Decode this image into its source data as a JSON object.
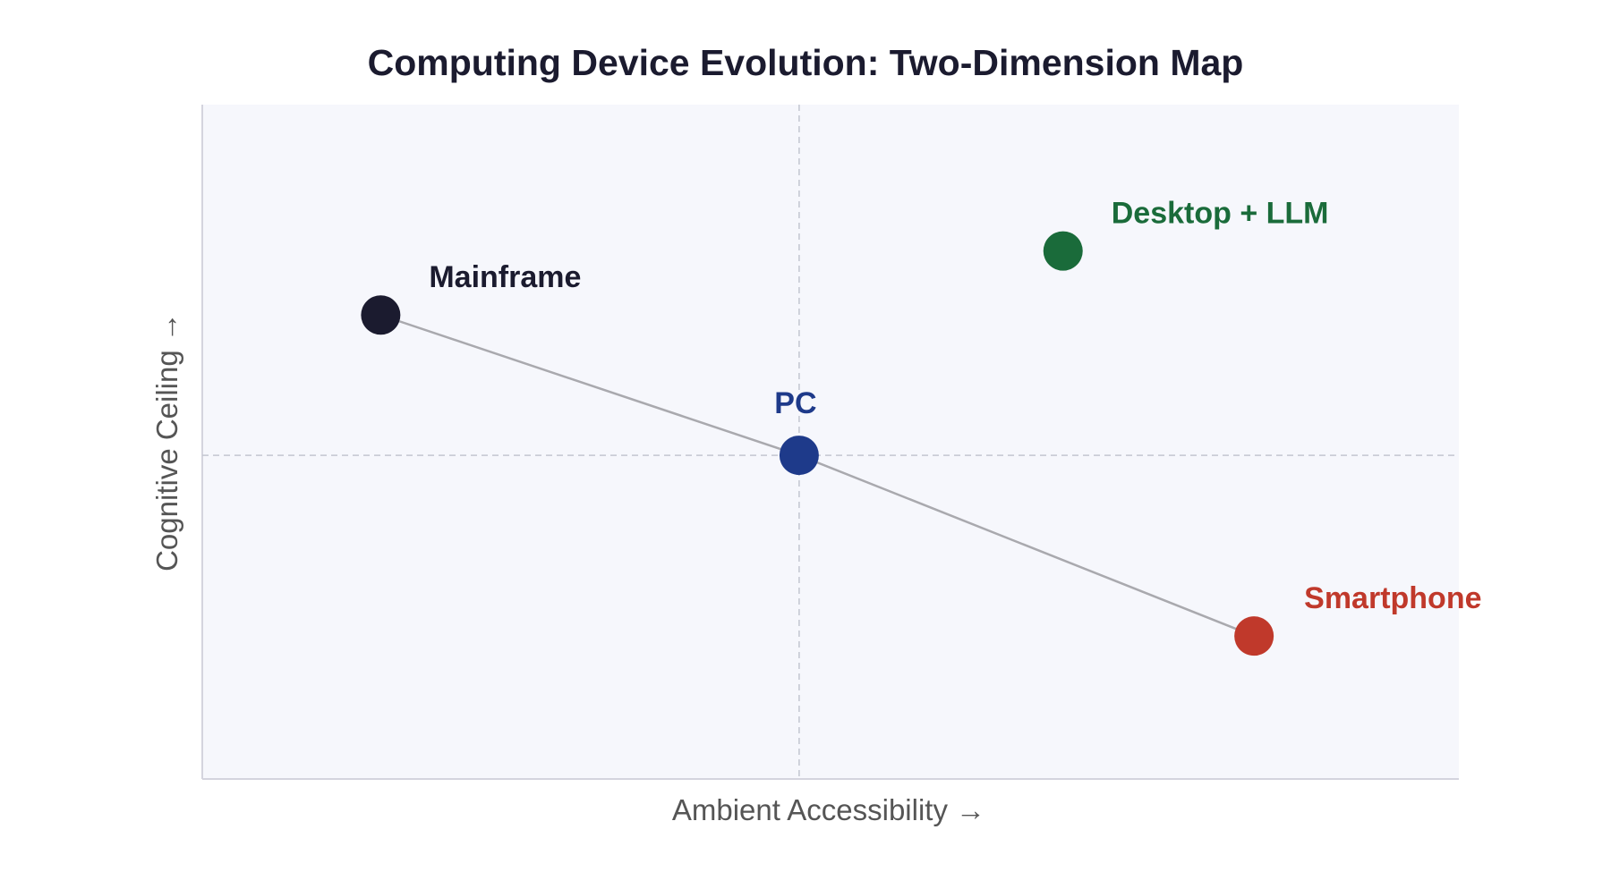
{
  "chart_data": {
    "type": "scatter",
    "title": "Computing Device Evolution: Two-Dimension Map",
    "xlabel": "Ambient Accessibility →",
    "ylabel": "Cognitive Ceiling →",
    "xlim": [
      0,
      10
    ],
    "ylim": [
      0,
      10
    ],
    "grid": false,
    "reference_lines": {
      "x": 4.75,
      "y": 4.8
    },
    "points": [
      {
        "name": "Mainframe",
        "x": 1.42,
        "y": 6.88,
        "color": "#1b1b2f"
      },
      {
        "name": "PC",
        "x": 4.75,
        "y": 4.8,
        "color": "#1e3a8a"
      },
      {
        "name": "Smartphone",
        "x": 8.37,
        "y": 2.12,
        "color": "#c0392b"
      },
      {
        "name": "Desktop + LLM",
        "x": 6.85,
        "y": 7.83,
        "color": "#1a6b3a"
      }
    ],
    "trajectory": [
      "Mainframe",
      "PC",
      "Smartphone"
    ]
  }
}
